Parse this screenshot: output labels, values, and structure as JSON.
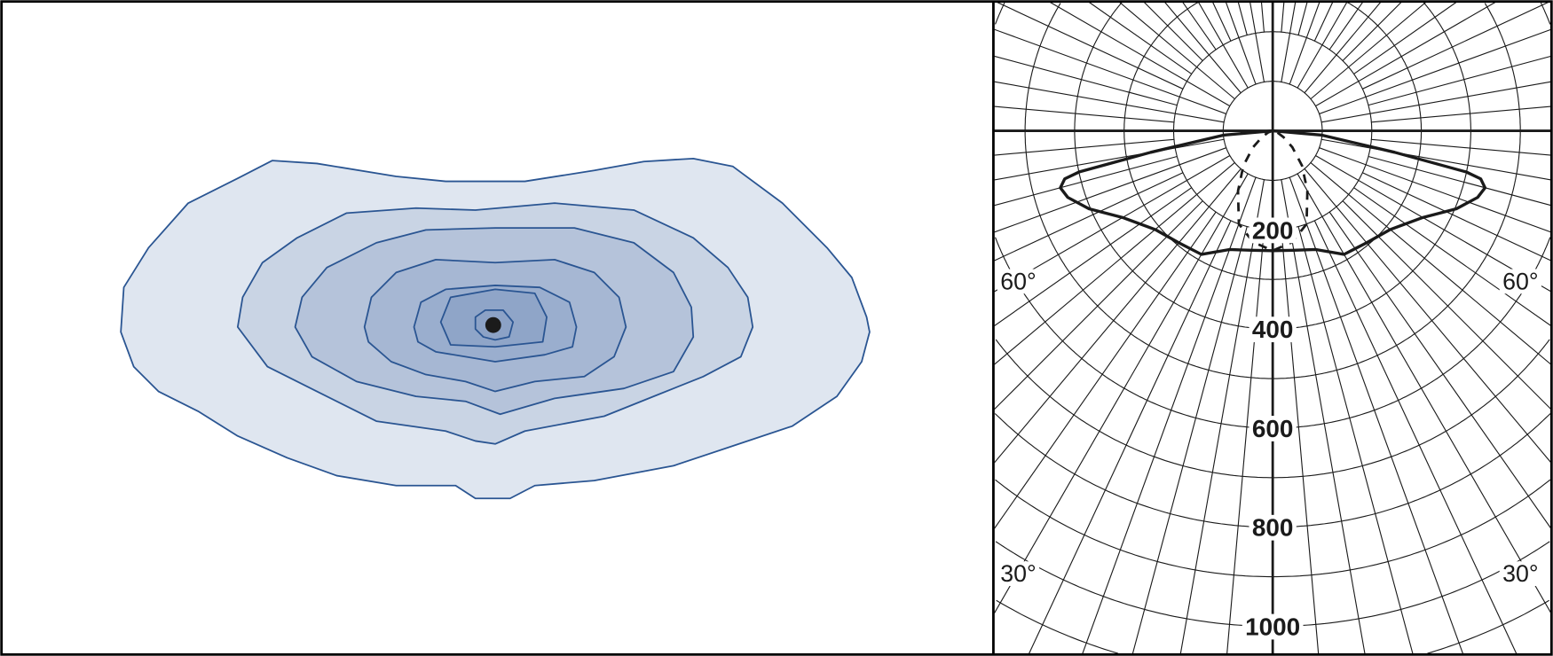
{
  "isolux": {
    "levels": 7,
    "fills": [
      "#dfe6f0",
      "#c9d4e4",
      "#b5c3da",
      "#a6b7d3",
      "#9aaece",
      "#8fa5c8",
      "#8ca2c6"
    ],
    "stroke": "#2a5592",
    "center_marker": "luminaire-position"
  },
  "chart_data": {
    "type": "polar-line",
    "radial_ticks": [
      "200",
      "400",
      "600",
      "800",
      "1000"
    ],
    "angle_labels": {
      "left_upper": "60°",
      "right_upper": "60°",
      "left_lower": "30°",
      "right_lower": "30°"
    },
    "radial_step": 100,
    "angular_step_deg": 10,
    "series": [
      {
        "style": "solid",
        "angles_deg": [
          0,
          10,
          20,
          30,
          40,
          50,
          60,
          67,
          72,
          75,
          77,
          78,
          80,
          85,
          90
        ],
        "values": [
          242,
          245,
          255,
          288,
          295,
          310,
          350,
          403,
          435,
          444,
          431,
          400,
          250,
          100,
          0
        ]
      },
      {
        "style": "dashed",
        "angles_deg": [
          0,
          10,
          20,
          30,
          40,
          50,
          60,
          70,
          90
        ],
        "values": [
          242,
          228,
          200,
          140,
          92,
          52,
          25,
          10,
          0
        ]
      }
    ],
    "grid": true
  }
}
